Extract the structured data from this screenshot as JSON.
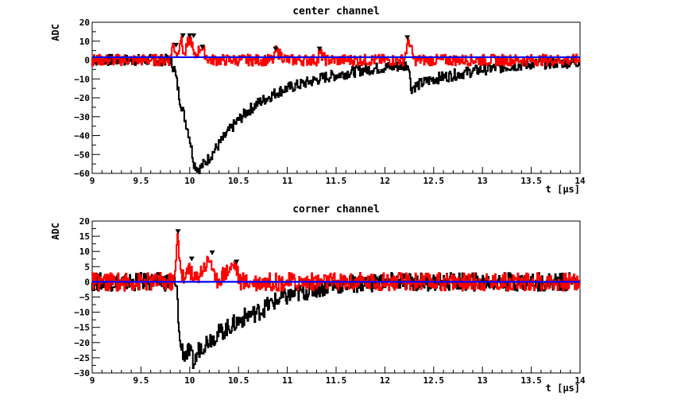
{
  "chart_data": [
    {
      "type": "line",
      "title": "center channel",
      "xlabel": "t  [µs]",
      "ylabel": "ADC",
      "xlim": [
        9,
        14
      ],
      "ylim": [
        -60,
        20
      ],
      "x_ticks": [
        "9",
        "9.5",
        "10",
        "10.5",
        "11",
        "11.5",
        "12",
        "12.5",
        "13",
        "13.5",
        "14"
      ],
      "y_ticks": [
        "20",
        "10",
        "0",
        "−10",
        "−20",
        "−30",
        "−40",
        "−50",
        "−60"
      ],
      "grid": false,
      "colors": {
        "raw": "#000000",
        "filtered": "#ff0000",
        "baseline": "#0000ff",
        "marker": "#000000"
      },
      "series": [
        {
          "id": "raw",
          "color": "#000000",
          "points": [
            [
              9.0,
              0
            ],
            [
              9.6,
              0
            ],
            [
              9.8,
              0
            ],
            [
              9.85,
              -5
            ],
            [
              9.9,
              -20
            ],
            [
              9.95,
              -30
            ],
            [
              10.0,
              -40
            ],
            [
              10.05,
              -55
            ],
            [
              10.1,
              -58
            ],
            [
              10.2,
              -52
            ],
            [
              10.3,
              -45
            ],
            [
              10.4,
              -38
            ],
            [
              10.5,
              -32
            ],
            [
              10.6,
              -27
            ],
            [
              10.7,
              -23
            ],
            [
              10.8,
              -20
            ],
            [
              10.9,
              -17
            ],
            [
              11.0,
              -15
            ],
            [
              11.2,
              -12
            ],
            [
              11.4,
              -9
            ],
            [
              11.6,
              -7
            ],
            [
              11.8,
              -5
            ],
            [
              12.0,
              -4
            ],
            [
              12.2,
              -3
            ],
            [
              12.25,
              -2
            ],
            [
              12.27,
              -15
            ],
            [
              12.35,
              -13
            ],
            [
              12.5,
              -10
            ],
            [
              12.8,
              -7
            ],
            [
              13.0,
              -5
            ],
            [
              13.5,
              -2
            ],
            [
              14.0,
              -1
            ]
          ]
        },
        {
          "id": "filtered",
          "color": "#ff0000",
          "points": [
            [
              9.0,
              0
            ],
            [
              9.8,
              0
            ],
            [
              9.83,
              8
            ],
            [
              9.88,
              3
            ],
            [
              9.91,
              12
            ],
            [
              9.95,
              2
            ],
            [
              9.99,
              10
            ],
            [
              10.02,
              11
            ],
            [
              10.05,
              1
            ],
            [
              10.12,
              7
            ],
            [
              10.2,
              0
            ],
            [
              10.87,
              0
            ],
            [
              10.88,
              5
            ],
            [
              11.0,
              0
            ],
            [
              11.32,
              0
            ],
            [
              11.33,
              4
            ],
            [
              11.4,
              0
            ],
            [
              12.2,
              0
            ],
            [
              12.25,
              11
            ],
            [
              12.3,
              0
            ],
            [
              14.0,
              0
            ]
          ]
        },
        {
          "id": "baseline",
          "color": "#0000ff",
          "points": [
            [
              9.0,
              1.5
            ],
            [
              14.0,
              1.5
            ]
          ]
        }
      ],
      "peak_markers": [
        [
          9.86,
          7
        ],
        [
          9.93,
          12
        ],
        [
          10.0,
          12
        ],
        [
          10.04,
          12
        ],
        [
          10.13,
          6
        ],
        [
          10.88,
          5
        ],
        [
          11.33,
          5
        ],
        [
          12.23,
          11
        ]
      ],
      "noise_amplitude": 3
    },
    {
      "type": "line",
      "title": "corner channel",
      "xlabel": "t  [µs]",
      "ylabel": "ADC",
      "xlim": [
        9,
        14
      ],
      "ylim": [
        -30,
        20
      ],
      "x_ticks": [
        "9",
        "9.5",
        "10",
        "10.5",
        "11",
        "11.5",
        "12",
        "12.5",
        "13",
        "13.5",
        "14"
      ],
      "y_ticks": [
        "20",
        "15",
        "10",
        "5",
        "0",
        "−5",
        "−10",
        "−15",
        "−20",
        "−25",
        "−30"
      ],
      "grid": false,
      "colors": {
        "raw": "#000000",
        "filtered": "#ff0000",
        "baseline": "#0000ff",
        "marker": "#000000"
      },
      "series": [
        {
          "id": "raw",
          "color": "#000000",
          "points": [
            [
              9.0,
              0
            ],
            [
              9.85,
              0
            ],
            [
              9.88,
              -5
            ],
            [
              9.9,
              -20
            ],
            [
              9.95,
              -24
            ],
            [
              10.0,
              -23
            ],
            [
              10.05,
              -27
            ],
            [
              10.1,
              -22
            ],
            [
              10.2,
              -19
            ],
            [
              10.3,
              -17
            ],
            [
              10.4,
              -15
            ],
            [
              10.5,
              -13
            ],
            [
              10.6,
              -11
            ],
            [
              10.7,
              -10
            ],
            [
              10.8,
              -8
            ],
            [
              10.9,
              -6
            ],
            [
              11.0,
              -5
            ],
            [
              11.2,
              -3
            ],
            [
              11.5,
              -1
            ],
            [
              12.0,
              0
            ],
            [
              14.0,
              0
            ]
          ]
        },
        {
          "id": "filtered",
          "color": "#ff0000",
          "points": [
            [
              9.0,
              0
            ],
            [
              9.85,
              0
            ],
            [
              9.88,
              15
            ],
            [
              9.92,
              3
            ],
            [
              9.96,
              0
            ],
            [
              10.0,
              6
            ],
            [
              10.04,
              0
            ],
            [
              10.22,
              8
            ],
            [
              10.26,
              0
            ],
            [
              10.47,
              6
            ],
            [
              10.52,
              0
            ],
            [
              14.0,
              0
            ]
          ]
        },
        {
          "id": "baseline",
          "color": "#0000ff",
          "points": [
            [
              9.0,
              0
            ],
            [
              14.0,
              0
            ]
          ]
        }
      ],
      "peak_markers": [
        [
          9.88,
          16
        ],
        [
          10.02,
          7
        ],
        [
          10.23,
          9
        ],
        [
          10.48,
          6
        ]
      ],
      "noise_amplitude": 3
    }
  ]
}
